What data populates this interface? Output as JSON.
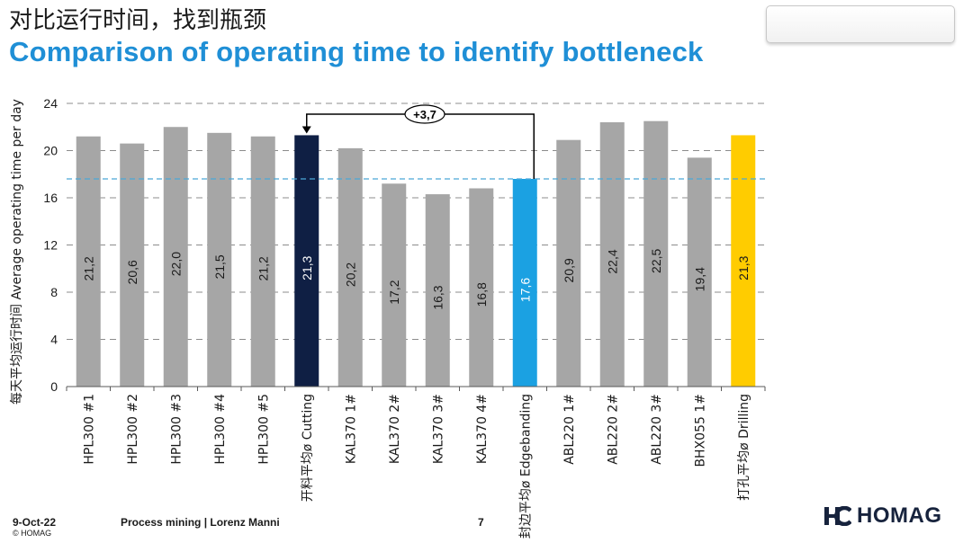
{
  "header": {
    "title_cn": "对比运行时间，找到瓶颈",
    "title_en": "Comparison of operating time to identify bottleneck"
  },
  "chart_data": {
    "type": "bar",
    "ylabel": "每天平均运行时间 Average operating time per day",
    "ylim": [
      0,
      24
    ],
    "yticks": [
      0,
      4,
      8,
      12,
      16,
      20,
      24
    ],
    "grid": true,
    "categories": [
      "HPL300 #1",
      "HPL300 #2",
      "HPL300 #3",
      "HPL300 #4",
      "HPL300 #5",
      "开料平均ø Cutting",
      "KAL370 1#",
      "KAL370 2#",
      "KAL370 3#",
      "KAL370 4#",
      "封边平均ø Edgebanding",
      "ABL220 1#",
      "ABL220 2#",
      "ABL220 3#",
      "BHX055 1#",
      "打孔平均ø Drilling"
    ],
    "values": [
      21.2,
      20.6,
      22.0,
      21.5,
      21.2,
      21.3,
      20.2,
      17.2,
      16.3,
      16.8,
      17.6,
      20.9,
      22.4,
      22.5,
      19.4,
      21.3
    ],
    "value_labels": [
      "21,2",
      "20,6",
      "22,0",
      "21,5",
      "21,2",
      "21,3",
      "20,2",
      "17,2",
      "16,3",
      "16,8",
      "17,6",
      "20,9",
      "22,4",
      "22,5",
      "19,4",
      "21,3"
    ],
    "bar_colors": [
      "#a6a6a6",
      "#a6a6a6",
      "#a6a6a6",
      "#a6a6a6",
      "#a6a6a6",
      "#0f1f44",
      "#a6a6a6",
      "#a6a6a6",
      "#a6a6a6",
      "#a6a6a6",
      "#1ba1e2",
      "#a6a6a6",
      "#a6a6a6",
      "#a6a6a6",
      "#a6a6a6",
      "#ffcc00"
    ],
    "value_label_colors": [
      "#1a1a1a",
      "#1a1a1a",
      "#1a1a1a",
      "#1a1a1a",
      "#1a1a1a",
      "#ffffff",
      "#1a1a1a",
      "#1a1a1a",
      "#1a1a1a",
      "#1a1a1a",
      "#ffffff",
      "#1a1a1a",
      "#1a1a1a",
      "#1a1a1a",
      "#1a1a1a",
      "#1a1a1a"
    ],
    "reference_line": {
      "value": 17.6,
      "color": "#4aa8d8"
    },
    "annotation": {
      "text": "+3,7",
      "from_index": 10,
      "to_index": 5
    }
  },
  "footer": {
    "date": "9-Oct-22",
    "copyright": "© HOMAG",
    "center": "Process mining | Lorenz Manni",
    "page": "7",
    "logo_text": "HOMAG",
    "logo_color": "#17233d"
  }
}
